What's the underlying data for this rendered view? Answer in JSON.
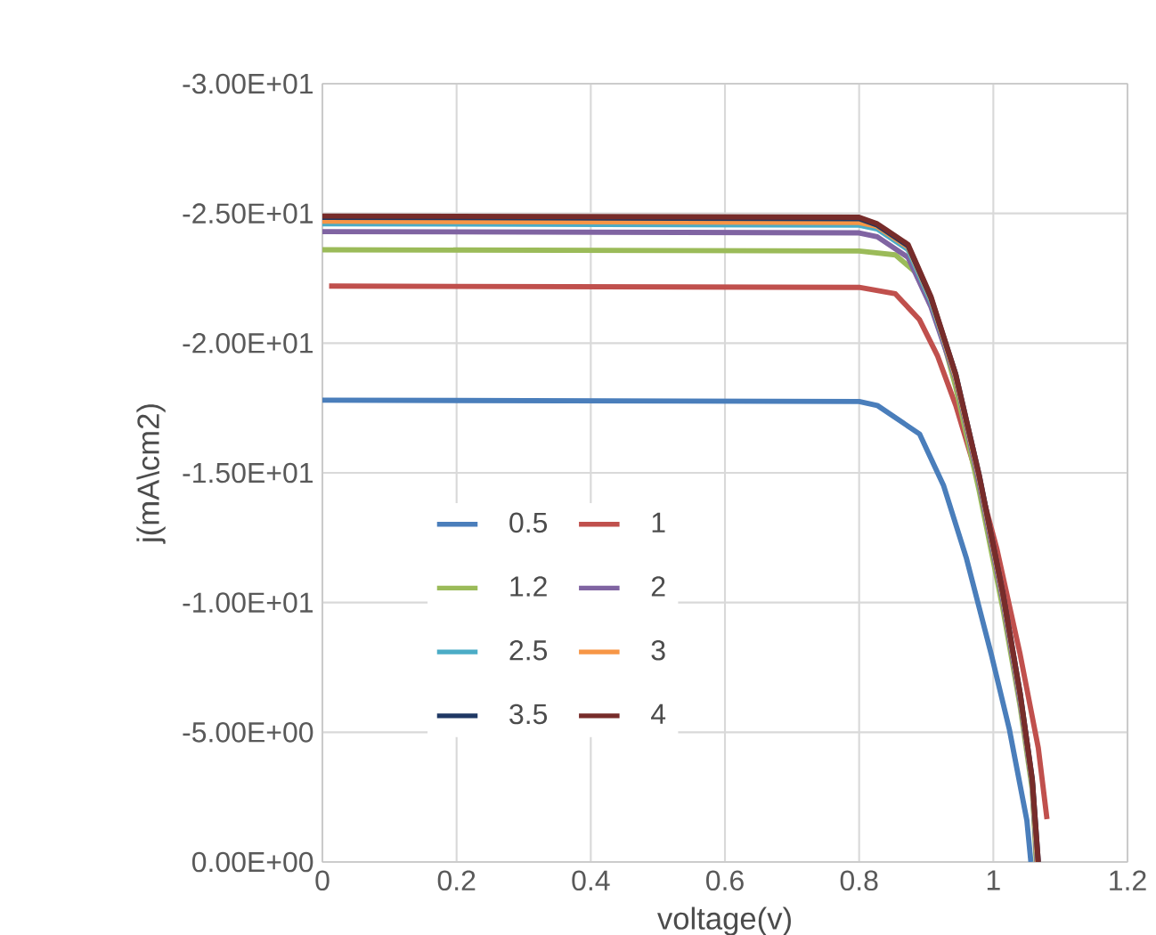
{
  "chart_data": {
    "type": "line",
    "xlabel": "voltage(v)",
    "ylabel": "j(mA\\cm2)",
    "xlim": [
      0,
      1.2
    ],
    "xticks": [
      0,
      0.2,
      0.4,
      0.6,
      0.8,
      1,
      1.2
    ],
    "ylim": [
      0,
      -30
    ],
    "yticks": [
      {
        "value": 0,
        "label": "0.00E+00"
      },
      {
        "value": -5,
        "label": "-5.00E+00"
      },
      {
        "value": -10,
        "label": "-1.00E+01"
      },
      {
        "value": -15,
        "label": "-1.50E+01"
      },
      {
        "value": -20,
        "label": "-2.00E+01"
      },
      {
        "value": -25,
        "label": "-2.50E+01"
      },
      {
        "value": -30,
        "label": "-3.00E+01"
      }
    ],
    "grid": true,
    "legend": "bottom left",
    "marker": "none",
    "line_style": "solid",
    "series": [
      {
        "name": "0.5",
        "color": "#4a7ebb",
        "x": [
          0,
          0.8,
          0.827,
          0.89,
          0.926,
          0.96,
          0.997,
          1.024,
          1.05,
          1.056
        ],
        "values": [
          -17.8,
          -17.75,
          -17.6,
          -16.5,
          -14.5,
          -11.7,
          -8.0,
          -5.1,
          -1.6,
          0
        ]
      },
      {
        "name": "1",
        "color": "#c0504d",
        "x": [
          0.01,
          0.8,
          0.854,
          0.89,
          0.917,
          0.944,
          0.979,
          1.005,
          1.04,
          1.067,
          1.08
        ],
        "values": [
          -22.2,
          -22.15,
          -21.9,
          -20.9,
          -19.5,
          -17.6,
          -14.6,
          -12.1,
          -8.0,
          -4.4,
          -1.65
        ]
      },
      {
        "name": "1.2",
        "color": "#9bbb59",
        "x": [
          0,
          0.8,
          0.854,
          0.89,
          0.917,
          0.944,
          0.979,
          1.014,
          1.04,
          1.058,
          1.064
        ],
        "values": [
          -23.6,
          -23.55,
          -23.4,
          -22.6,
          -20.9,
          -18.3,
          -14.3,
          -9.8,
          -6.0,
          -2.8,
          0
        ]
      },
      {
        "name": "2",
        "color": "#8064a2",
        "x": [
          0,
          0.8,
          0.827,
          0.873,
          0.907,
          0.944,
          0.979,
          1.014,
          1.04,
          1.058,
          1.065
        ],
        "values": [
          -24.3,
          -24.25,
          -24.1,
          -23.3,
          -21.4,
          -18.6,
          -14.6,
          -10.1,
          -6.2,
          -3.0,
          0
        ]
      },
      {
        "name": "2.5",
        "color": "#4bacc6",
        "x": [
          0,
          0.8,
          0.827,
          0.873,
          0.907,
          0.944,
          0.979,
          1.014,
          1.04,
          1.058,
          1.066
        ],
        "values": [
          -24.6,
          -24.55,
          -24.4,
          -23.6,
          -21.6,
          -18.7,
          -14.8,
          -10.3,
          -6.4,
          -3.1,
          0
        ]
      },
      {
        "name": "3",
        "color": "#f79646",
        "x": [
          0,
          0.8,
          0.827,
          0.873,
          0.907,
          0.944,
          0.979,
          1.014,
          1.04,
          1.058,
          1.066
        ],
        "values": [
          -24.7,
          -24.65,
          -24.5,
          -23.7,
          -21.7,
          -18.7,
          -14.8,
          -10.3,
          -6.4,
          -3.1,
          0
        ]
      },
      {
        "name": "3.5",
        "color": "#1f3864",
        "x": [
          0,
          0.8,
          0.827,
          0.873,
          0.907,
          0.944,
          0.979,
          1.014,
          1.04,
          1.058,
          1.067
        ],
        "values": [
          -24.85,
          -24.8,
          -24.55,
          -23.75,
          -21.75,
          -18.8,
          -14.9,
          -10.4,
          -6.5,
          -3.2,
          0
        ]
      },
      {
        "name": "4",
        "color": "#772c2a",
        "x": [
          0,
          0.8,
          0.827,
          0.873,
          0.907,
          0.944,
          0.979,
          1.014,
          1.04,
          1.058,
          1.067
        ],
        "values": [
          -24.9,
          -24.85,
          -24.6,
          -23.8,
          -21.8,
          -18.8,
          -14.9,
          -10.4,
          -6.5,
          -3.2,
          0
        ]
      }
    ]
  }
}
